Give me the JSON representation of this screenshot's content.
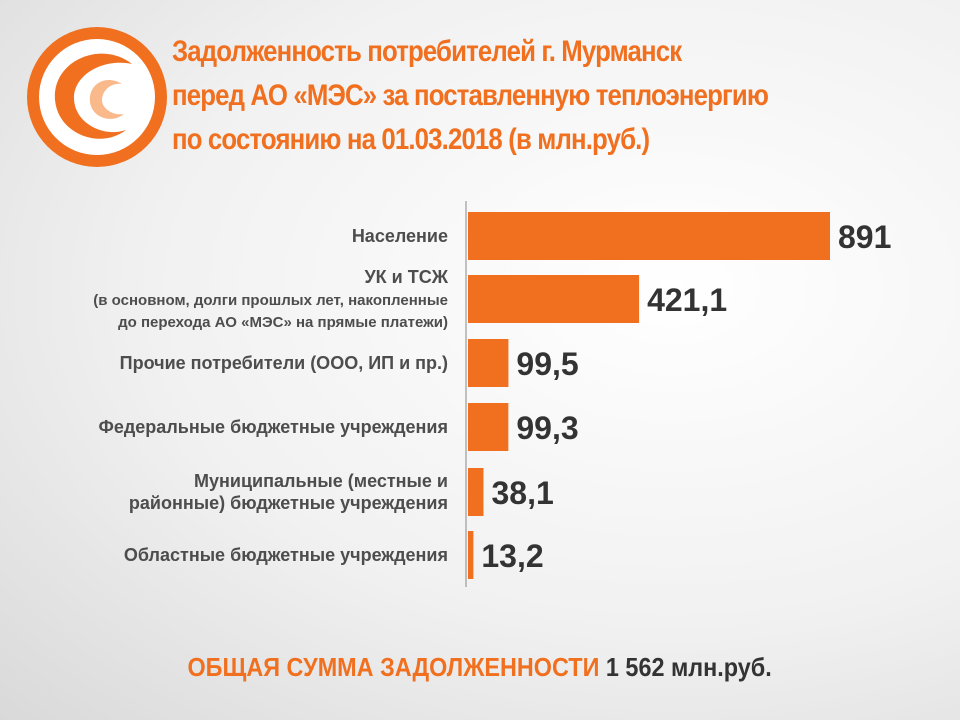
{
  "title_lines": [
    "Задолженность потребителей г. Мурманск",
    "перед АО «МЭС» за поставленную теплоэнергию",
    "по состоянию на 01.03.2018 (в млн.руб.)"
  ],
  "colors": {
    "accent": "#f07020",
    "text": "#4d4d4d",
    "value": "#333333"
  },
  "logo_icon": "swirl-logo-icon",
  "chart_data": {
    "type": "bar",
    "orientation": "horizontal",
    "categories": [
      [
        "Население"
      ],
      [
        "УК и ТСЖ",
        "(в основном, долги прошлых лет, накопленные",
        "до перехода  АО «МЭС» на прямые платежи)"
      ],
      [
        "Прочие потребители (ООО, ИП и пр.)"
      ],
      [
        "Федеральные бюджетные учреждения"
      ],
      [
        "Муниципальные (местные и",
        "районные) бюджетные учреждения"
      ],
      [
        "Областные бюджетные учреждения"
      ]
    ],
    "values": [
      891,
      421.1,
      99.5,
      99.3,
      38.1,
      13.2
    ],
    "value_labels": [
      "891",
      "421,1",
      "99,5",
      "99,3",
      "38,1",
      "13,2"
    ],
    "xlim": [
      0,
      891
    ],
    "grid": false,
    "legend": "none"
  },
  "total": {
    "label": "ОБЩАЯ СУММА ЗАДОЛЖЕННОСТИ",
    "value": "1  562 млн.руб."
  }
}
